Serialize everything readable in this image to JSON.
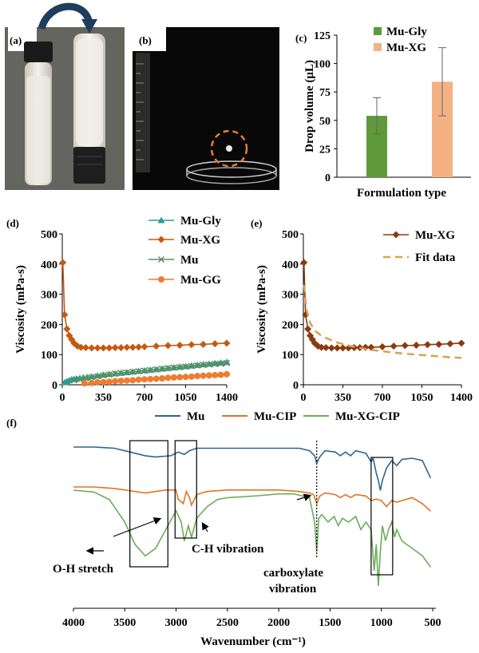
{
  "panel_labels": {
    "a": "(a)",
    "b": "(b)",
    "c": "(c)",
    "d": "(d)",
    "e": "(e)",
    "f": "(f)"
  },
  "colors": {
    "gly": "#2e9c93",
    "xg": "#c55a11",
    "mu": "#5b8f5b",
    "gg": "#ed7d31",
    "bar_gly": "#5e9a3a",
    "bar_xg": "#f4b183",
    "fit": "#d6a24e",
    "ir_mu": "#2f6591",
    "ir_cip": "#e0742a",
    "ir_xgcip": "#6bae58"
  },
  "chart_data": [
    {
      "id": "c",
      "type": "bar",
      "categories": [
        "Mu-Gly",
        "Mu-XG"
      ],
      "values": [
        54,
        84
      ],
      "errors": [
        16,
        30
      ],
      "ylabel": "Drop volume (μL)",
      "xlabel": "Formulation type",
      "ylim": [
        0,
        125
      ],
      "yticks": [
        "0",
        "25",
        "50",
        "75",
        "100",
        "125"
      ],
      "legend": [
        "Mu-Gly",
        "Mu-XG"
      ]
    },
    {
      "id": "d",
      "type": "line",
      "ylabel": "Viscosity (mPa-s)",
      "xlim": [
        0,
        1400
      ],
      "ylim": [
        0,
        500
      ],
      "xticks": [
        "0",
        "350",
        "700",
        "1050",
        "1400"
      ],
      "yticks": [
        "0",
        "100",
        "200",
        "300",
        "400",
        "500"
      ],
      "series": [
        {
          "name": "Mu-Gly",
          "x": [
            20,
            40,
            60,
            80,
            100,
            120,
            150,
            180,
            210,
            250,
            300,
            350,
            400,
            450,
            500,
            550,
            600,
            650,
            700,
            750,
            800,
            850,
            900,
            950,
            1000,
            1050,
            1100,
            1150,
            1200,
            1250,
            1300,
            1350,
            1400
          ],
          "y": [
            8,
            12,
            15,
            18,
            19,
            20,
            22,
            24,
            25,
            27,
            30,
            33,
            35,
            37,
            39,
            41,
            43,
            45,
            47,
            49,
            51,
            53,
            55,
            57,
            59,
            61,
            63,
            65,
            67,
            69,
            71,
            73,
            75
          ]
        },
        {
          "name": "Mu-XG",
          "x": [
            5,
            20,
            40,
            60,
            80,
            100,
            130,
            160,
            200,
            250,
            300,
            350,
            400,
            450,
            500,
            550,
            600,
            650,
            700,
            800,
            900,
            1000,
            1100,
            1200,
            1300,
            1400
          ],
          "y": [
            405,
            232,
            185,
            163,
            150,
            138,
            128,
            124,
            123,
            122,
            122,
            122,
            122,
            123,
            123,
            124,
            124,
            125,
            126,
            128,
            130,
            131,
            133,
            134,
            136,
            138
          ]
        },
        {
          "name": "Mu",
          "x": [
            100,
            150,
            200,
            250,
            300,
            350,
            400,
            450,
            500,
            550,
            600,
            650,
            700,
            750,
            800,
            850,
            900,
            950,
            1000,
            1050,
            1100,
            1150,
            1200,
            1250,
            1300,
            1350,
            1400
          ],
          "y": [
            15,
            18,
            22,
            25,
            28,
            31,
            34,
            37,
            39,
            41,
            43,
            45,
            47,
            49,
            51,
            53,
            55,
            57,
            58,
            60,
            62,
            64,
            66,
            67,
            69,
            70,
            72
          ]
        },
        {
          "name": "Mu-GG",
          "x": [
            190,
            250,
            300,
            350,
            400,
            450,
            500,
            550,
            600,
            650,
            700,
            750,
            800,
            850,
            900,
            950,
            1000,
            1050,
            1100,
            1150,
            1200,
            1250,
            1300,
            1350,
            1400
          ],
          "y": [
            5,
            6,
            8,
            9,
            10,
            12,
            13,
            14,
            15,
            17,
            18,
            19,
            20,
            21,
            23,
            24,
            25,
            26,
            27,
            29,
            30,
            31,
            32,
            33,
            35
          ]
        }
      ]
    },
    {
      "id": "e",
      "type": "line",
      "ylabel": "Viscosity (mPa-s)",
      "xlim": [
        0,
        1400
      ],
      "ylim": [
        0,
        500
      ],
      "xticks": [
        "0",
        "350",
        "700",
        "1050",
        "1400"
      ],
      "yticks": [
        "0",
        "100",
        "200",
        "300",
        "400",
        "500"
      ],
      "series": [
        {
          "name": "Mu-XG",
          "x": [
            5,
            20,
            40,
            60,
            80,
            100,
            130,
            160,
            200,
            250,
            300,
            350,
            400,
            450,
            500,
            550,
            600,
            700,
            800,
            900,
            1000,
            1100,
            1200,
            1300,
            1400
          ],
          "y": [
            405,
            232,
            185,
            163,
            150,
            138,
            128,
            124,
            123,
            122,
            122,
            122,
            122,
            123,
            123,
            124,
            124,
            126,
            128,
            130,
            131,
            133,
            134,
            136,
            138
          ]
        },
        {
          "name": "Fit data",
          "x": [
            5,
            30,
            60,
            100,
            150,
            200,
            250,
            300,
            400,
            500,
            600,
            700,
            800,
            900,
            1000,
            1100,
            1200,
            1300,
            1400
          ],
          "y": [
            330,
            245,
            205,
            180,
            165,
            155,
            147,
            140,
            130,
            122,
            116,
            111,
            107,
            103,
            100,
            97,
            94,
            91,
            89
          ]
        }
      ]
    },
    {
      "id": "f",
      "type": "line",
      "xlabel": "Wavenumber (cm⁻¹)",
      "xlim": [
        4000,
        500
      ],
      "xticks": [
        "4000",
        "3500",
        "3000",
        "2500",
        "2000",
        "1500",
        "1000",
        "500"
      ],
      "legend": [
        "Mu",
        "Mu-CIP",
        "Mu-XG-CIP"
      ],
      "annotations": [
        "O-H stretch",
        "C-H vibration",
        "carboxylate",
        "vibration"
      ],
      "series": [
        {
          "name": "Mu",
          "x": [
            4000,
            3800,
            3600,
            3450,
            3300,
            3200,
            3050,
            2980,
            2920,
            2870,
            2800,
            2500,
            2000,
            1800,
            1700,
            1650,
            1630,
            1600,
            1550,
            1450,
            1400,
            1350,
            1300,
            1250,
            1150,
            1100,
            1080,
            1050,
            1030,
            1010,
            990,
            950,
            900,
            850,
            800,
            700,
            600,
            520
          ],
          "y": [
            97,
            97,
            96,
            93,
            90,
            89,
            90,
            93,
            91,
            94,
            96,
            96,
            96,
            96,
            94,
            90,
            84,
            89,
            94,
            93,
            90,
            93,
            90,
            94,
            92,
            85,
            88,
            76,
            70,
            62,
            70,
            80,
            86,
            82,
            87,
            88,
            86,
            72
          ]
        },
        {
          "name": "Mu-CIP",
          "x": [
            4000,
            3800,
            3600,
            3400,
            3300,
            3200,
            3100,
            3000,
            2980,
            2930,
            2900,
            2870,
            2850,
            2800,
            2700,
            2500,
            2000,
            1800,
            1700,
            1660,
            1630,
            1600,
            1550,
            1450,
            1400,
            1350,
            1300,
            1250,
            1150,
            1100,
            1050,
            1000,
            950,
            900,
            850,
            700,
            600,
            520
          ],
          "y": [
            63,
            63,
            62,
            60,
            59,
            60,
            61,
            61,
            55,
            52,
            60,
            56,
            51,
            58,
            60,
            61,
            61,
            60,
            59,
            58,
            52,
            57,
            59,
            58,
            56,
            58,
            56,
            58,
            57,
            54,
            55,
            54,
            50,
            54,
            53,
            56,
            52,
            47
          ]
        },
        {
          "name": "Mu-XG-CIP",
          "x": [
            4000,
            3800,
            3650,
            3500,
            3400,
            3300,
            3200,
            3100,
            3000,
            2950,
            2920,
            2880,
            2850,
            2800,
            2700,
            2600,
            2500,
            2200,
            2000,
            1850,
            1700,
            1650,
            1630,
            1610,
            1580,
            1520,
            1460,
            1420,
            1380,
            1320,
            1250,
            1200,
            1150,
            1100,
            1070,
            1050,
            1030,
            1010,
            990,
            960,
            930,
            900,
            870,
            850,
            800,
            700,
            600,
            520
          ],
          "y": [
            57,
            56,
            52,
            40,
            28,
            22,
            26,
            36,
            46,
            40,
            30,
            38,
            32,
            42,
            48,
            52,
            53,
            54,
            55,
            55,
            53,
            40,
            24,
            42,
            44,
            40,
            43,
            38,
            42,
            40,
            43,
            36,
            40,
            36,
            14,
            28,
            6,
            24,
            38,
            30,
            36,
            40,
            32,
            36,
            30,
            26,
            22,
            16
          ]
        }
      ]
    }
  ]
}
